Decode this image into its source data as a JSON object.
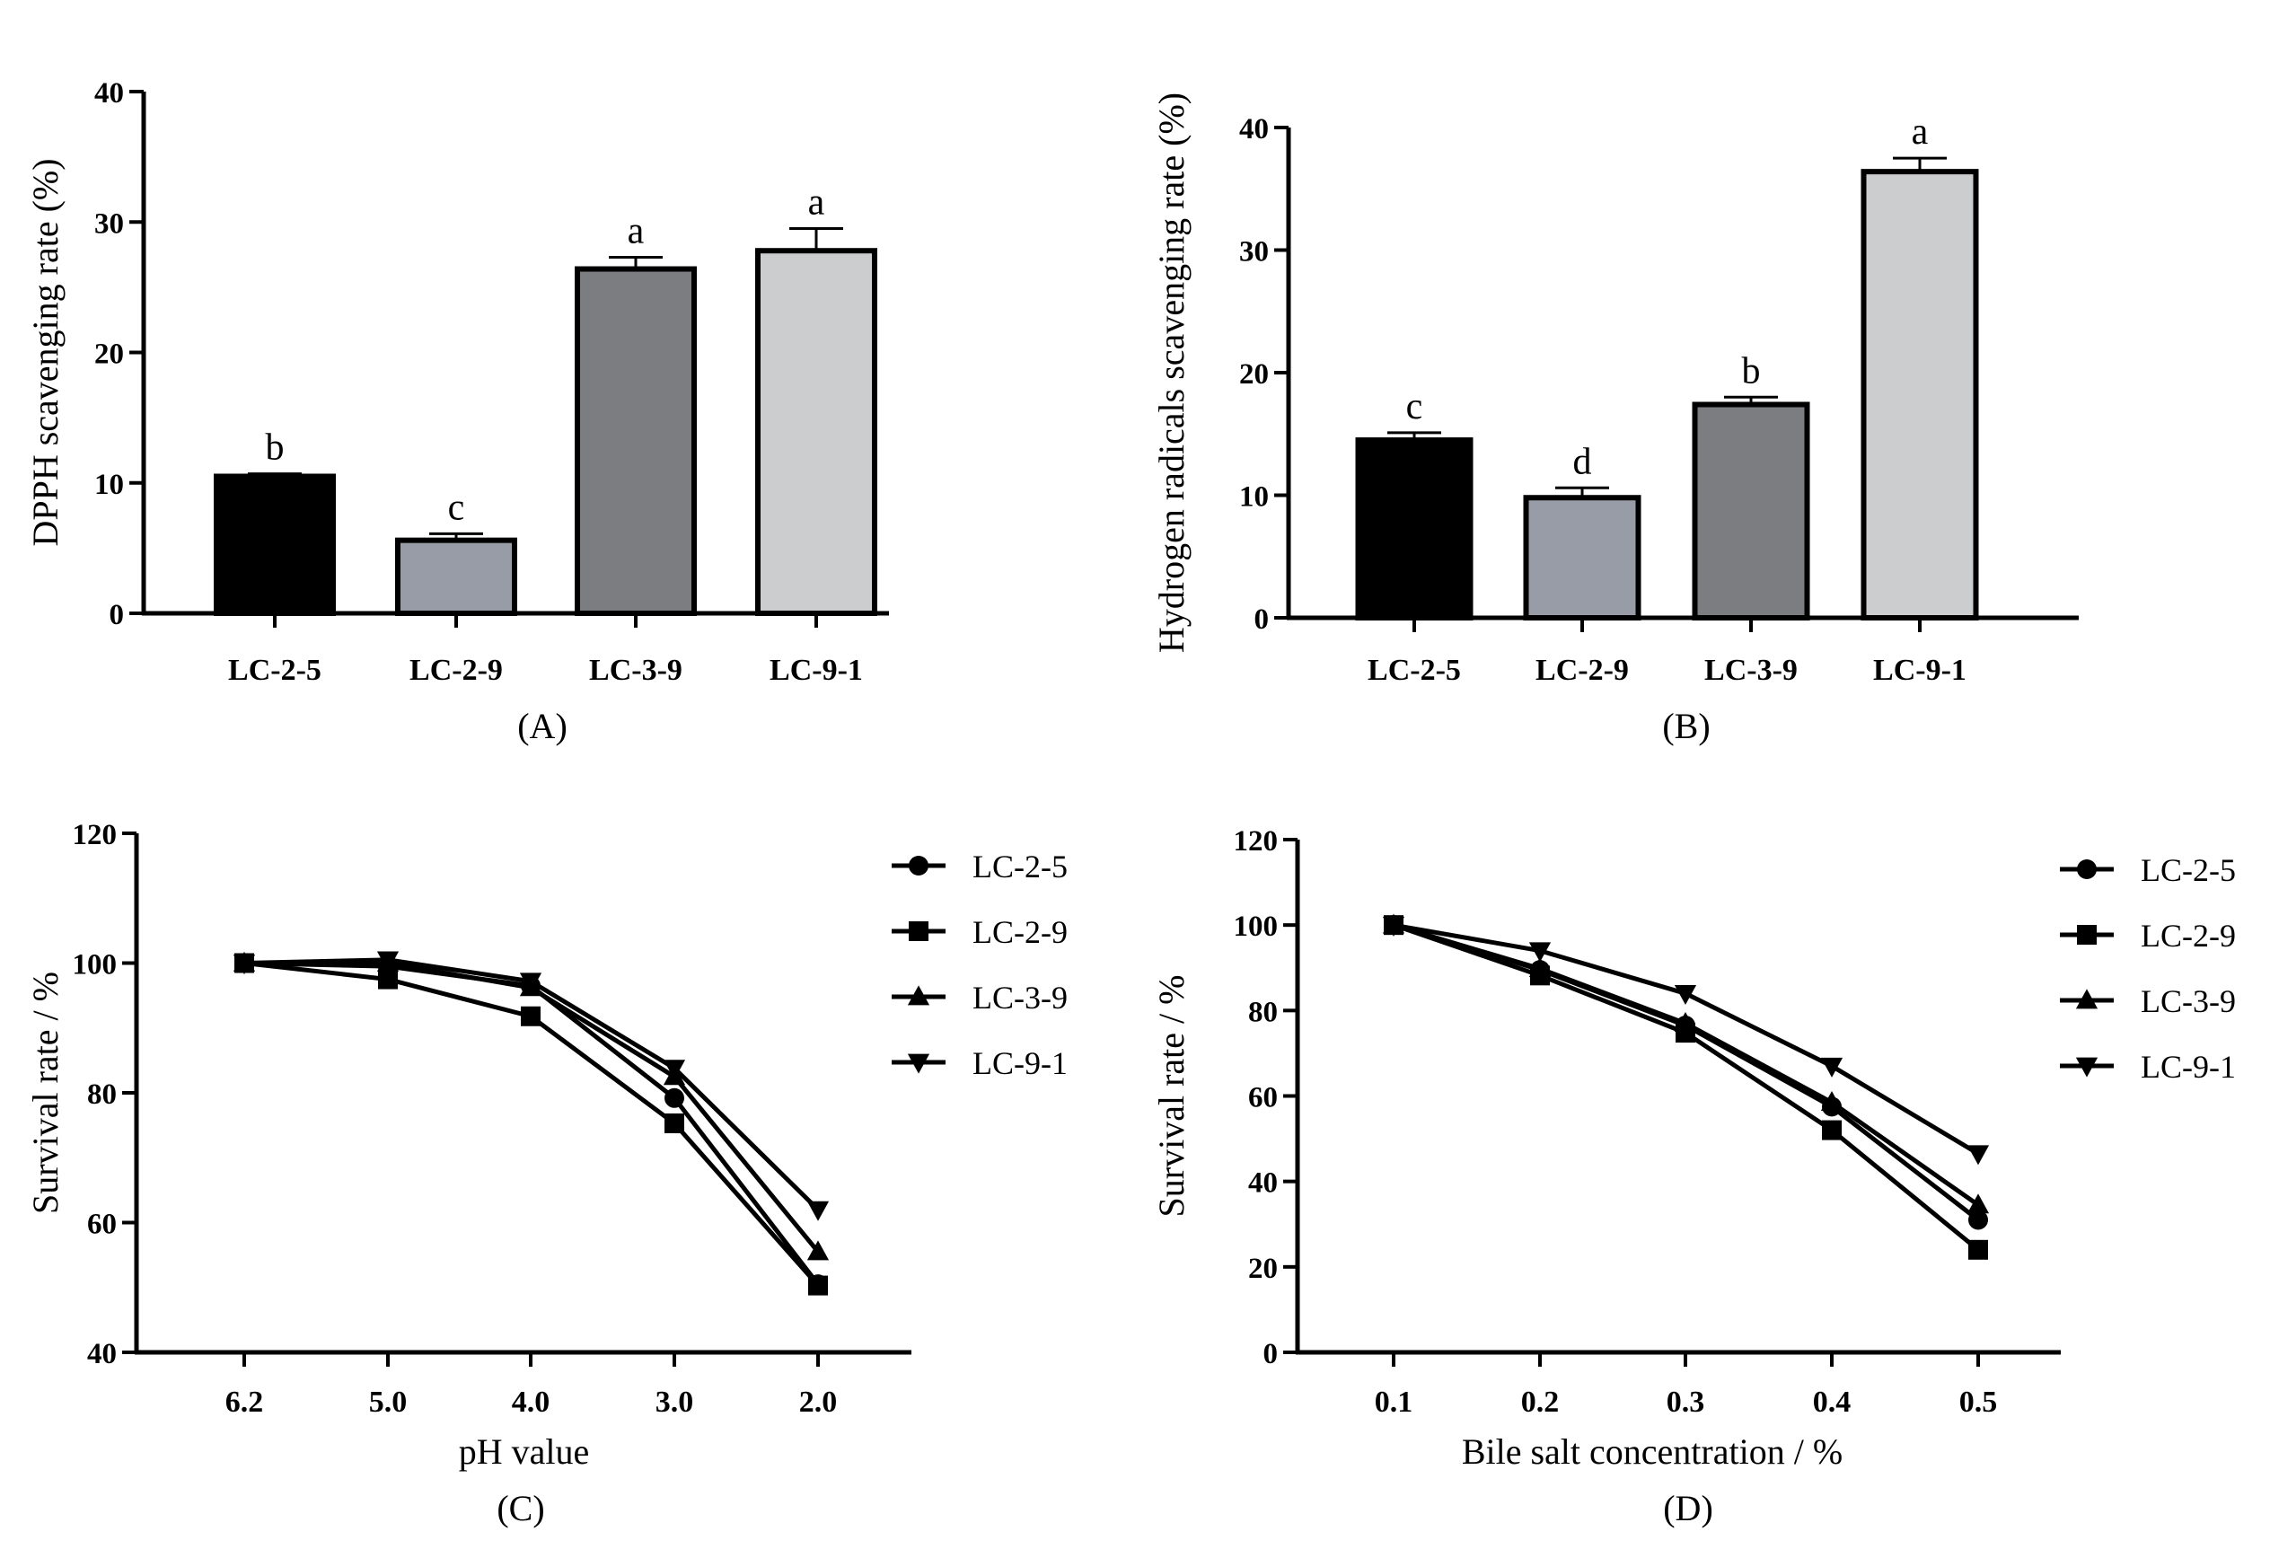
{
  "chart_data": [
    {
      "panel": "(A)",
      "type": "bar",
      "categories": [
        "LC-2-5",
        "LC-2-9",
        "LC-3-9",
        "LC-9-1"
      ],
      "values": [
        10.5,
        5.6,
        26.4,
        27.8
      ],
      "errors": [
        0.2,
        0.5,
        0.9,
        1.7
      ],
      "letters": [
        "b",
        "c",
        "a",
        "a"
      ],
      "colors": [
        "#000000",
        "#989ca6",
        "#7b7d80",
        "#cccdcf"
      ],
      "xlabel": "",
      "ylabel": "DPPH scavenging rate (%)",
      "ylim": [
        0,
        40
      ],
      "yticks": [
        0,
        10,
        20,
        30,
        40
      ]
    },
    {
      "panel": "(B)",
      "type": "bar",
      "categories": [
        "LC-2-5",
        "LC-2-9",
        "LC-3-9",
        "LC-9-1"
      ],
      "values": [
        14.5,
        9.8,
        17.4,
        36.4
      ],
      "errors": [
        0.6,
        0.8,
        0.6,
        1.1
      ],
      "letters": [
        "c",
        "d",
        "b",
        "a"
      ],
      "colors": [
        "#000000",
        "#989ca6",
        "#7b7d80",
        "#cccdcf"
      ],
      "xlabel": "",
      "ylabel": "Hydrogen radicals scavenging rate (%)",
      "ylim": [
        0,
        40
      ],
      "yticks": [
        0,
        10,
        20,
        30,
        40
      ]
    },
    {
      "panel": "(C)",
      "type": "line",
      "x": [
        "6.2",
        "5.0",
        "4.0",
        "3.0",
        "2.0"
      ],
      "series": [
        {
          "name": "LC-2-5",
          "marker": "circle",
          "values": [
            100,
            99.5,
            96.5,
            79.2,
            50.5
          ]
        },
        {
          "name": "LC-2-9",
          "marker": "square",
          "values": [
            100,
            97.5,
            91.8,
            75.3,
            50.3
          ]
        },
        {
          "name": "LC-3-9",
          "marker": "triangle-up",
          "values": [
            100,
            100,
            96.2,
            82.5,
            55.5
          ]
        },
        {
          "name": "LC-9-1",
          "marker": "triangle-down",
          "values": [
            100,
            100.5,
            97.2,
            83.8,
            62.0
          ]
        }
      ],
      "xlabel": "pH value",
      "ylabel": "Survival rate / %",
      "ylim": [
        40,
        120
      ],
      "yticks": [
        40,
        60,
        80,
        100,
        120
      ],
      "legend": "right"
    },
    {
      "panel": "(D)",
      "type": "line",
      "x": [
        "0.1",
        "0.2",
        "0.3",
        "0.4",
        "0.5"
      ],
      "series": [
        {
          "name": "LC-2-5",
          "marker": "circle",
          "values": [
            100,
            89.5,
            76.5,
            57.5,
            31.0
          ]
        },
        {
          "name": "LC-2-9",
          "marker": "square",
          "values": [
            100,
            88.2,
            74.8,
            52.0,
            24.0
          ]
        },
        {
          "name": "LC-3-9",
          "marker": "triangle-up",
          "values": [
            100,
            89.8,
            77.0,
            58.5,
            34.5
          ]
        },
        {
          "name": "LC-9-1",
          "marker": "triangle-down",
          "values": [
            100,
            94.0,
            84.0,
            67.0,
            46.5
          ]
        }
      ],
      "xlabel": "Bile salt concentration / %",
      "ylabel": "Survival rate / %",
      "ylim": [
        0,
        120
      ],
      "yticks": [
        0,
        20,
        40,
        60,
        80,
        100,
        120
      ],
      "legend": "right"
    }
  ]
}
